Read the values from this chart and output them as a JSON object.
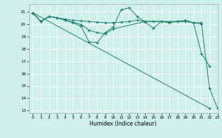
{
  "xlabel": "Humidex (Indice chaleur)",
  "bg_color": "#cef0e8",
  "grid_color": "#ffffff",
  "line_color": "#1a7a6e",
  "marker": "+",
  "xlim": [
    -0.5,
    23
  ],
  "ylim": [
    12.8,
    21.6
  ],
  "yticks": [
    13,
    14,
    15,
    16,
    17,
    18,
    19,
    20,
    21
  ],
  "xticks": [
    0,
    1,
    2,
    3,
    4,
    5,
    6,
    7,
    8,
    9,
    10,
    11,
    12,
    13,
    14,
    15,
    16,
    17,
    18,
    19,
    20,
    21,
    22,
    23
  ],
  "series": [
    {
      "x": [
        0,
        1,
        2,
        3,
        4,
        5,
        6,
        7,
        8,
        9,
        10,
        11,
        12,
        13,
        14,
        15,
        16,
        17,
        18,
        19,
        20,
        21
      ],
      "y": [
        20.9,
        20.2,
        20.6,
        20.5,
        20.4,
        20.3,
        20.25,
        20.2,
        20.15,
        20.1,
        20.1,
        20.15,
        20.2,
        20.3,
        20.2,
        20.2,
        20.2,
        20.15,
        20.2,
        20.2,
        20.1,
        20.1
      ]
    },
    {
      "x": [
        0,
        1,
        2,
        3,
        4,
        5,
        6,
        7,
        8,
        9,
        10,
        11,
        12,
        13,
        14,
        15,
        16,
        17,
        18,
        19,
        20,
        21,
        22
      ],
      "y": [
        20.9,
        20.2,
        20.6,
        20.5,
        20.3,
        20.1,
        19.8,
        18.55,
        18.5,
        19.3,
        19.75,
        21.15,
        21.3,
        20.6,
        20.15,
        19.65,
        20.2,
        20.1,
        20.2,
        20.3,
        20.1,
        17.6,
        16.6
      ]
    },
    {
      "x": [
        0,
        22
      ],
      "y": [
        20.9,
        13.2
      ]
    },
    {
      "x": [
        0,
        1,
        2,
        3,
        4,
        5,
        6,
        7,
        8,
        9,
        10,
        14,
        19,
        20,
        21,
        22,
        23
      ],
      "y": [
        20.9,
        20.2,
        20.6,
        20.5,
        20.3,
        20.15,
        19.95,
        19.5,
        19.3,
        19.2,
        19.6,
        20.2,
        20.2,
        20.1,
        20.0,
        14.8,
        13.2
      ]
    }
  ]
}
